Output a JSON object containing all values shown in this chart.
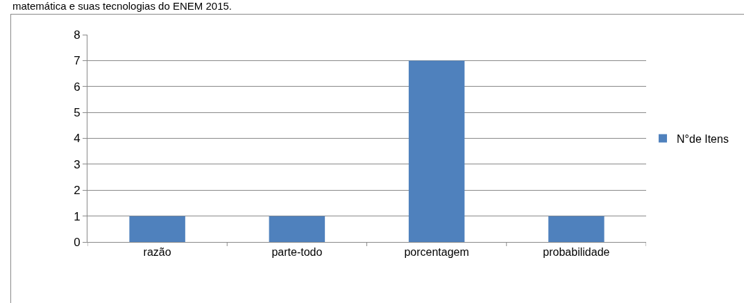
{
  "chart_data": {
    "type": "bar",
    "title": "matemática e suas tecnologias do ENEM 2015.",
    "categories": [
      "razão",
      "parte-todo",
      "porcentagem",
      "probabilidade"
    ],
    "series": [
      {
        "name": "N°de Itens",
        "color": "#4f81bd",
        "values": [
          1,
          1,
          7,
          1
        ]
      }
    ],
    "ylim": [
      0,
      8
    ],
    "yticks": [
      0,
      1,
      2,
      3,
      4,
      5,
      6,
      7,
      8
    ],
    "grid": "y",
    "legend": "right"
  }
}
